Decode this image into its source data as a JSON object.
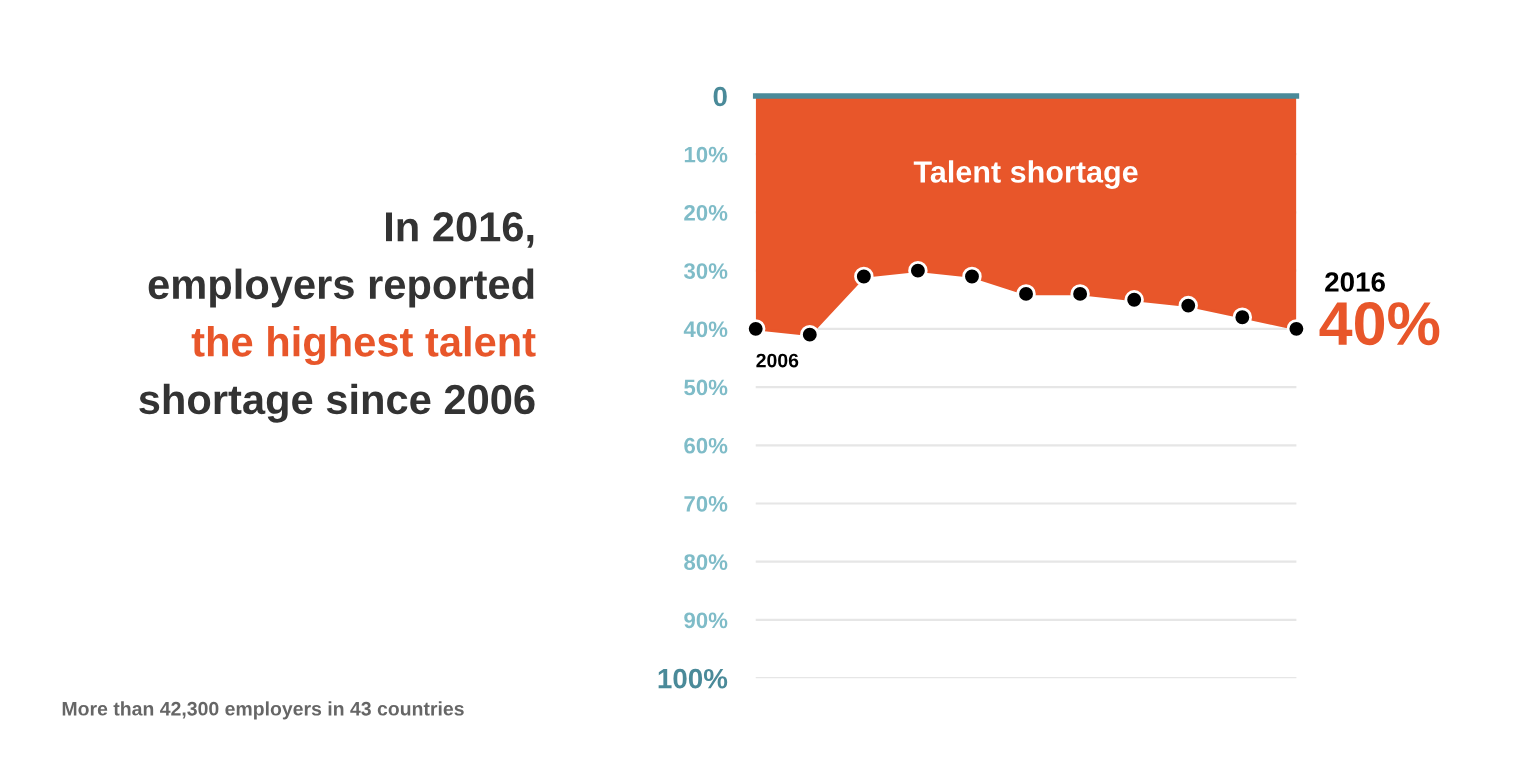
{
  "chart_data": {
    "type": "area",
    "title": "In 2016,\nemployers reported\nthe highest talent\nshortage since 2006",
    "categories": [
      null,
      null,
      null,
      null,
      null,
      null,
      null,
      null,
      null,
      null,
      null
    ],
    "series": [
      {
        "name": "Talent shortage",
        "color": "#e8562a",
        "values": [
          40,
          41,
          31,
          30,
          31,
          34,
          34,
          35,
          36,
          38,
          40
        ]
      }
    ],
    "ylim": [
      100,
      0
    ],
    "yticks": [
      0,
      {
        "value": 10,
        "label": "10%"
      },
      {
        "value": 20,
        "label": "20%"
      },
      {
        "value": 30,
        "label": "30%"
      },
      {
        "value": 40,
        "label": "40%"
      },
      {
        "value": 50,
        "label": "50%"
      },
      {
        "value": 60,
        "label": "60%"
      },
      {
        "value": 70,
        "label": "70%"
      },
      {
        "value": 80,
        "label": "80%"
      },
      {
        "value": 90,
        "label": "90%"
      },
      {
        "value": 100,
        "label": "100%"
      }
    ],
    "tick_labels": "y",
    "grid": "y",
    "marker": "circle",
    "annotations": [
      {
        "text": "2006",
        "y": 40
      },
      "2016",
      "40%",
      "More than 42,300 employers in 43 countries"
    ]
  }
}
